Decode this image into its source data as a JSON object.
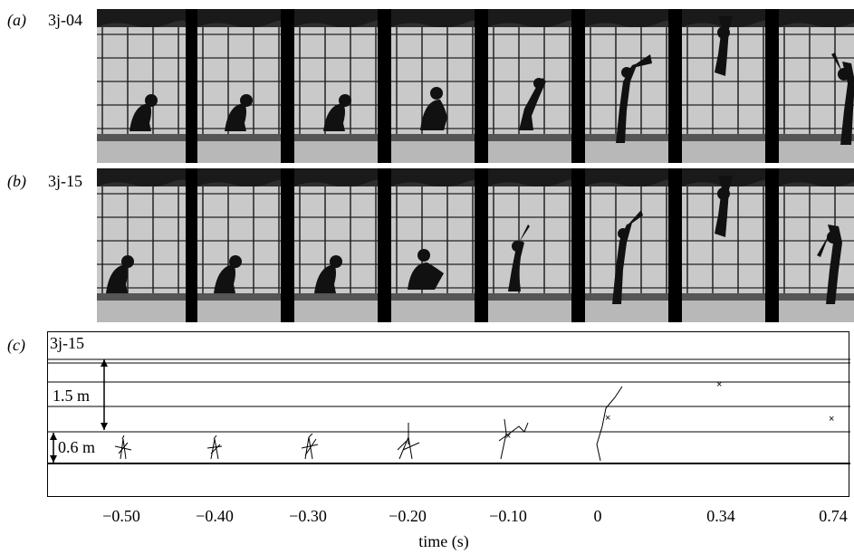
{
  "panels": [
    {
      "id": "a",
      "label": "(a)",
      "name": "3j-04"
    },
    {
      "id": "b",
      "label": "(b)",
      "name": "3j-15"
    },
    {
      "id": "c",
      "label": "(c)",
      "name": "3j-15"
    }
  ],
  "diagram": {
    "label_1_5m": "1.5 m",
    "label_0_6m": "0.6 m",
    "time_ticks": [
      "−0.50",
      "−0.40",
      "−0.30",
      "−0.20",
      "−0.10",
      "0",
      "0.34",
      "0.74"
    ],
    "axis_title": "time (s)"
  },
  "colors": {
    "background": "#ffffff",
    "wall": "#cfcfcf",
    "grid": "#222222",
    "divider": "#000000",
    "figure": "#111111"
  }
}
